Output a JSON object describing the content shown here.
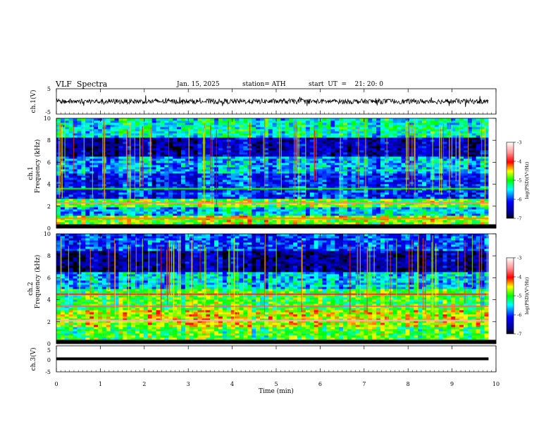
{
  "header": {
    "title": "VLF  Spectra",
    "date": "Jan. 15, 2025",
    "station": "station= ATH",
    "start": "start  UT  =    21: 20: 0"
  },
  "chart_data": {
    "type": "heatmap",
    "xlabel": "Time  (min)",
    "xlim": [
      0,
      10
    ],
    "xticks": [
      "0",
      "1",
      "2",
      "3",
      "4",
      "5",
      "6",
      "7",
      "8",
      "9",
      "10"
    ],
    "data_end_min": 9.83,
    "panels": [
      {
        "kind": "waveform",
        "ylabel": "ch.1(V)",
        "ylim": [
          -5,
          5
        ],
        "yticks": [
          "5",
          "-5"
        ],
        "baseline_v": 0,
        "noise_amplitude_v": 1
      },
      {
        "kind": "spectrogram",
        "ylabel_top": "ch.1",
        "ylabel": "Frequency  (kHz)",
        "ylim": [
          0,
          10
        ],
        "yticks": [
          "10",
          "8",
          "6",
          "4",
          "2",
          "0"
        ],
        "bands": [
          {
            "from_khz": 0.0,
            "to_khz": 1.2,
            "level": -4.8
          },
          {
            "from_khz": 1.2,
            "to_khz": 2.0,
            "level": -5.6
          },
          {
            "from_khz": 2.0,
            "to_khz": 2.6,
            "level": -4.9
          },
          {
            "from_khz": 2.6,
            "to_khz": 5.0,
            "level": -6.1
          },
          {
            "from_khz": 5.0,
            "to_khz": 6.6,
            "level": -5.7
          },
          {
            "from_khz": 6.6,
            "to_khz": 8.2,
            "level": -6.5
          },
          {
            "from_khz": 8.2,
            "to_khz": 10.0,
            "level": -5.4
          }
        ],
        "lines": [
          {
            "khz": 2.3,
            "level": -3.6
          },
          {
            "khz": 0.9,
            "level": -4.3
          },
          {
            "khz": 3.6,
            "level": -5.0
          }
        ],
        "colorbar": {
          "label": "log(PSD)(V²/Hz)",
          "range": [
            -7,
            -3
          ],
          "ticks": [
            "-3",
            "-4",
            "-5",
            "-6",
            "-7"
          ]
        }
      },
      {
        "kind": "spectrogram",
        "ylabel_top": "ch.2",
        "ylabel": "Frequency  (kHz)",
        "ylim": [
          0,
          10
        ],
        "yticks": [
          "10",
          "8",
          "6",
          "4",
          "2",
          "0"
        ],
        "bands": [
          {
            "from_khz": 0.0,
            "to_khz": 1.6,
            "level": -5.0
          },
          {
            "from_khz": 1.6,
            "to_khz": 3.0,
            "level": -4.6
          },
          {
            "from_khz": 3.0,
            "to_khz": 5.0,
            "level": -5.0
          },
          {
            "from_khz": 5.0,
            "to_khz": 6.6,
            "level": -5.6
          },
          {
            "from_khz": 6.6,
            "to_khz": 8.4,
            "level": -6.6
          },
          {
            "from_khz": 8.4,
            "to_khz": 10.0,
            "level": -6.0
          }
        ],
        "lines": [
          {
            "khz": 2.1,
            "level": -3.4
          },
          {
            "khz": 3.4,
            "level": -3.7
          },
          {
            "khz": 4.5,
            "level": -3.9
          }
        ],
        "colorbar": {
          "label": "log(PSD)(V²/Hz)",
          "range": [
            -7,
            -3
          ],
          "ticks": [
            "-3",
            "-4",
            "-5",
            "-6",
            "-7"
          ]
        }
      },
      {
        "kind": "waveform",
        "ylabel": "ch.3(V)",
        "ylim": [
          -5,
          5
        ],
        "yticks": [
          "5",
          "0",
          "-5"
        ],
        "baseline_v": 0,
        "noise_amplitude_v": 0.1
      }
    ]
  }
}
